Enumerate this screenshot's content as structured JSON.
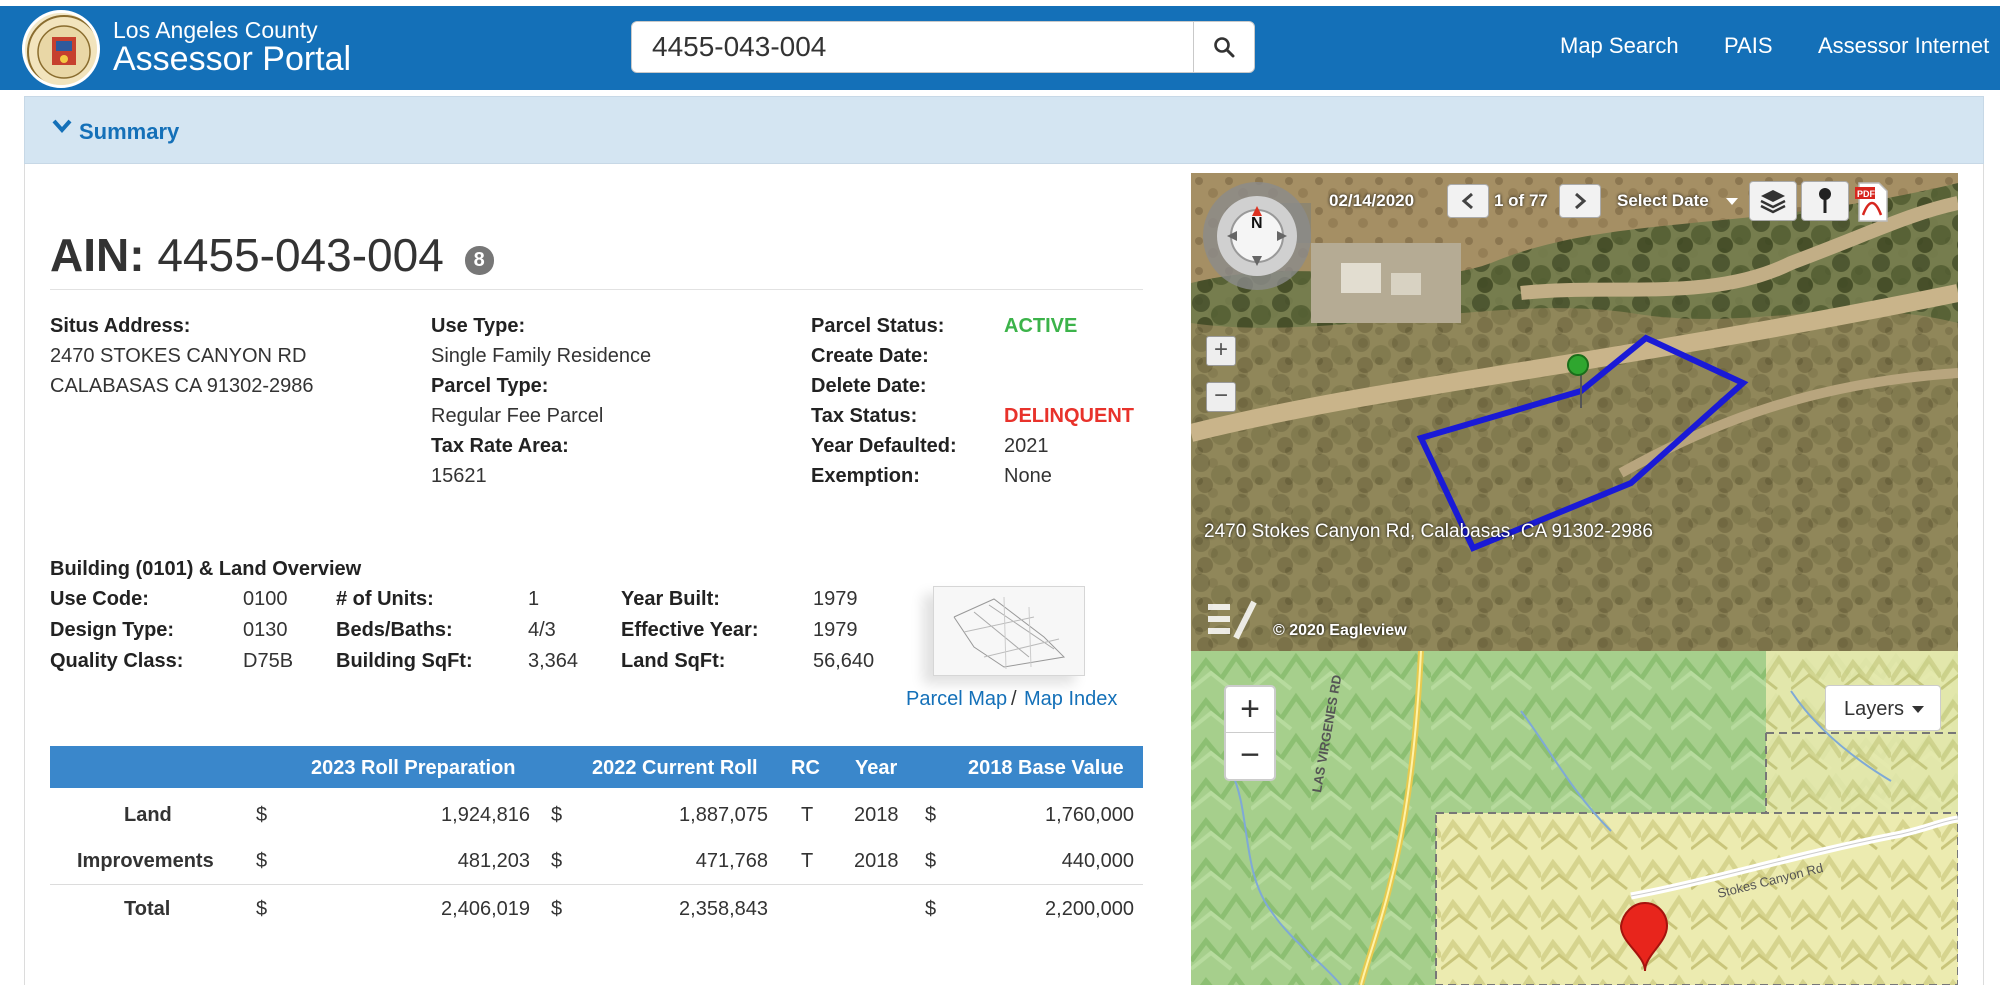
{
  "header": {
    "brand_small": "Los Angeles County",
    "brand_large": "Assessor Portal",
    "search_value": "4455-043-004",
    "nav": [
      "Map Search",
      "PAIS",
      "Assessor Internet"
    ]
  },
  "summary": {
    "label": "Summary"
  },
  "ain": {
    "label": "AIN:",
    "value": "4455-043-004",
    "badge": "8"
  },
  "property": {
    "situs_label": "Situs Address:",
    "situs_line1": "2470 STOKES CANYON RD",
    "situs_line2": "CALABASAS CA 91302-2986",
    "use_type_label": "Use Type:",
    "use_type": "Single Family Residence",
    "parcel_type_label": "Parcel Type:",
    "parcel_type": "Regular Fee Parcel",
    "tra_label": "Tax Rate Area:",
    "tra": "15621",
    "parcel_status_label": "Parcel Status:",
    "parcel_status": "ACTIVE",
    "create_date_label": "Create Date:",
    "delete_date_label": "Delete Date:",
    "tax_status_label": "Tax Status:",
    "tax_status": "DELINQUENT",
    "year_defaulted_label": "Year Defaulted:",
    "year_defaulted": "2021",
    "exemption_label": "Exemption:",
    "exemption": "None"
  },
  "building": {
    "title": "Building (0101) & Land Overview",
    "use_code_label": "Use Code:",
    "use_code": "0100",
    "design_type_label": "Design Type:",
    "design_type": "0130",
    "quality_class_label": "Quality Class:",
    "quality_class": "D75B",
    "units_label": "# of Units:",
    "units": "1",
    "beds_baths_label": "Beds/Baths:",
    "beds_baths": "4/3",
    "bldg_sqft_label": "Building SqFt:",
    "bldg_sqft": "3,364",
    "year_built_label": "Year Built:",
    "year_built": "1979",
    "effective_year_label": "Effective Year:",
    "effective_year": "1979",
    "land_sqft_label": "Land SqFt:",
    "land_sqft": "56,640",
    "parcel_map_link": "Parcel Map",
    "separator": "/",
    "map_index_link": "Map Index"
  },
  "values_table": {
    "headers": [
      "2023 Roll Preparation",
      "2022 Current Roll",
      "RC",
      "Year",
      "2018 Base Value"
    ],
    "rows": [
      {
        "label": "Land",
        "cur1": "$",
        "v2023": "1,924,816",
        "cur2": "$",
        "v2022": "1,887,075",
        "rc": "T",
        "year": "2018",
        "cur3": "$",
        "base": "1,760,000"
      },
      {
        "label": "Improvements",
        "cur1": "$",
        "v2023": "481,203",
        "cur2": "$",
        "v2022": "471,768",
        "rc": "T",
        "year": "2018",
        "cur3": "$",
        "base": "440,000"
      },
      {
        "label": "Total",
        "cur1": "$",
        "v2023": "2,406,019",
        "cur2": "$",
        "v2022": "2,358,843",
        "rc": "",
        "year": "",
        "cur3": "$",
        "base": "2,200,000"
      }
    ]
  },
  "aerial": {
    "date": "02/14/2020",
    "counter": "1 of 77",
    "select_date": "Select Date",
    "address_caption": "2470 Stokes Canyon Rd, Calabasas, CA 91302-2986",
    "copyright": "© 2020 Eagleview",
    "compass_label": "N",
    "zoom_in": "+",
    "zoom_out": "−"
  },
  "streetmap": {
    "zoom_in": "+",
    "zoom_out": "−",
    "layers_label": "Layers",
    "road_label_1": "LAS VIRGENES RD",
    "road_label_2": "Stokes Canyon Rd"
  },
  "colors": {
    "header_blue": "#1470b8",
    "table_header": "#3a87cb",
    "summary_bg": "#d4e5f2",
    "active_green": "#3cb34a",
    "delinquent_red": "#e8322b",
    "parcel_outline": "#1a1ad6"
  }
}
